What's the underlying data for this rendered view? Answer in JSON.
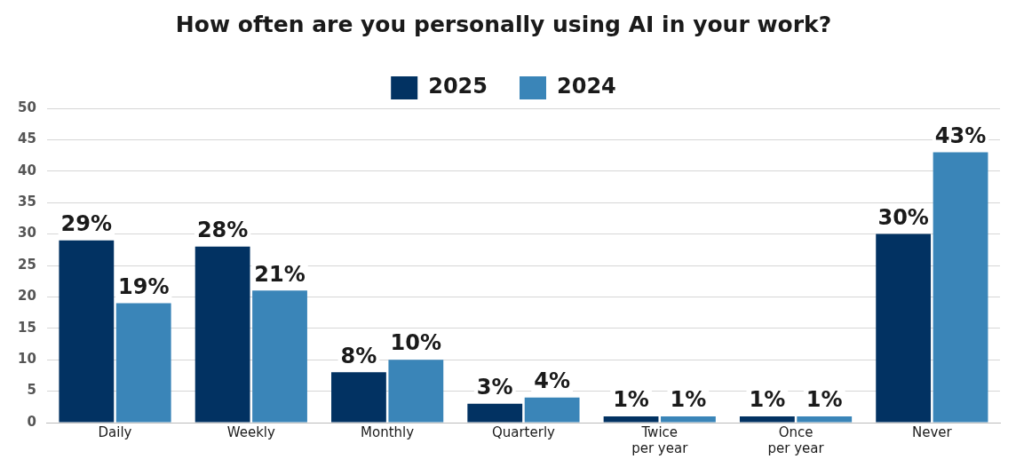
{
  "chart_data": {
    "type": "bar",
    "title": "How often are you personally using AI in your work?",
    "categories": [
      "Daily",
      "Weekly",
      "Monthly",
      "Quarterly",
      "Twice per year",
      "Once per year",
      "Never"
    ],
    "series": [
      {
        "name": "2025",
        "color": "#023262",
        "values": [
          29,
          28,
          8,
          3,
          1,
          1,
          30
        ],
        "value_labels": [
          "29%",
          "28%",
          "8%",
          "3%",
          "1%",
          "1%",
          "30%"
        ]
      },
      {
        "name": "2024",
        "color": "#3a85b8",
        "values": [
          19,
          21,
          10,
          4,
          1,
          1,
          43
        ],
        "value_labels": [
          "19%",
          "21%",
          "10%",
          "4%",
          "1%",
          "1%",
          "43%"
        ]
      }
    ],
    "ylim": [
      0,
      50
    ],
    "yticks": [
      0,
      5,
      10,
      15,
      20,
      25,
      30,
      35,
      40,
      45,
      50
    ],
    "grid": "y",
    "legend": "top"
  }
}
